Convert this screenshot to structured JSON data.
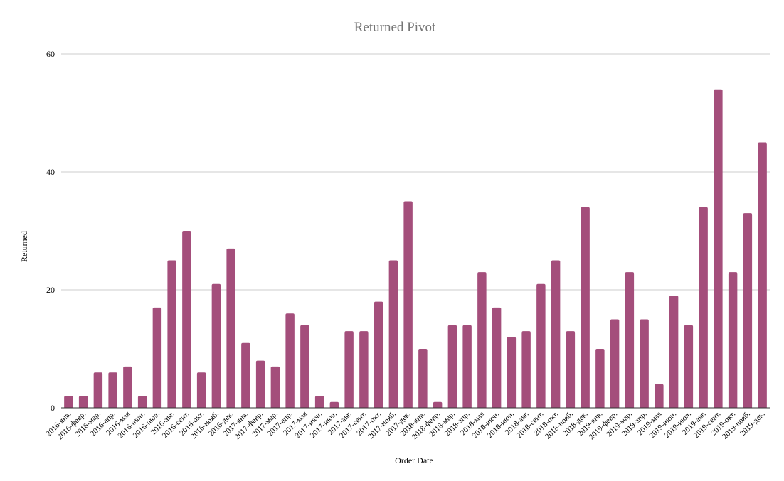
{
  "chart_data": {
    "type": "bar",
    "title": "Returned Pivot",
    "xlabel": "Order Date",
    "ylabel": "Returned",
    "ylim": [
      0,
      60
    ],
    "yticks": [
      0,
      20,
      40,
      60
    ],
    "grid": true,
    "bar_color": "#a44e7b",
    "categories": [
      "2016-янв.",
      "2016-февр.",
      "2016-мар.",
      "2016-апр.",
      "2016-мая",
      "2016-июн.",
      "2016-июл.",
      "2016-авг.",
      "2016-сент.",
      "2016-окт.",
      "2016-нояб.",
      "2016-дек.",
      "2017-янв.",
      "2017-февр.",
      "2017-мар.",
      "2017-апр.",
      "2017-мая",
      "2017-июн.",
      "2017-июл.",
      "2017-авг.",
      "2017-сент.",
      "2017-окт.",
      "2017-нояб.",
      "2017-дек.",
      "2018-янв.",
      "2018-февр.",
      "2018-мар.",
      "2018-апр.",
      "2018-мая",
      "2018-июн.",
      "2018-июл.",
      "2018-авг.",
      "2018-сент.",
      "2018-окт.",
      "2018-нояб.",
      "2018-дек.",
      "2019-янв.",
      "2019-февр.",
      "2019-мар.",
      "2019-апр.",
      "2019-мая",
      "2019-июн.",
      "2019-июл.",
      "2019-авг.",
      "2019-сент.",
      "2019-окт.",
      "2019-нояб.",
      "2019-дек."
    ],
    "series": [
      {
        "values": [
          2,
          2,
          6,
          6,
          7,
          2,
          17,
          25,
          30,
          6,
          21,
          27,
          11,
          8,
          7,
          16,
          14,
          2,
          1,
          13,
          13,
          18,
          25,
          35,
          10,
          1,
          14,
          14,
          23,
          17,
          12,
          13,
          21,
          25,
          13,
          34,
          10,
          15,
          23,
          15,
          4,
          19,
          14,
          34,
          54,
          23,
          33,
          45
        ]
      }
    ]
  }
}
